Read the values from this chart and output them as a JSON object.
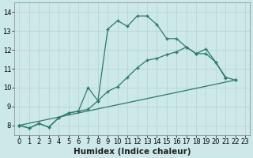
{
  "xlabel": "Humidex (Indice chaleur)",
  "background_color": "#cce8e8",
  "line_color": "#2a7a6a",
  "grid_color": "#b8d4d4",
  "xlim": [
    -0.5,
    23.5
  ],
  "ylim": [
    7.5,
    14.5
  ],
  "xticks": [
    0,
    1,
    2,
    3,
    4,
    5,
    6,
    7,
    8,
    9,
    10,
    11,
    12,
    13,
    14,
    15,
    16,
    17,
    18,
    19,
    20,
    21,
    22,
    23
  ],
  "yticks": [
    8,
    9,
    10,
    11,
    12,
    13,
    14
  ],
  "series1_x": [
    0,
    1,
    2,
    3,
    4,
    5,
    6,
    7,
    8,
    9,
    10,
    11,
    12,
    13,
    14,
    15,
    16,
    17,
    18,
    19,
    20,
    21
  ],
  "series1_y": [
    8.0,
    7.85,
    8.1,
    7.9,
    8.4,
    8.65,
    8.75,
    10.0,
    9.3,
    13.1,
    13.55,
    13.25,
    13.8,
    13.8,
    13.35,
    12.6,
    12.6,
    12.15,
    11.8,
    12.05,
    11.35,
    10.5
  ],
  "series2_x": [
    0,
    1,
    2,
    3,
    4,
    5,
    6,
    7,
    8,
    9,
    10,
    11,
    12,
    13,
    14,
    15,
    16,
    17,
    18,
    19,
    20,
    21,
    22
  ],
  "series2_y": [
    8.0,
    7.85,
    8.1,
    7.9,
    8.4,
    8.65,
    8.75,
    8.85,
    9.3,
    9.8,
    10.05,
    10.55,
    11.05,
    11.45,
    11.55,
    11.75,
    11.9,
    12.15,
    11.8,
    11.8,
    11.35,
    10.55,
    10.4
  ],
  "series3_x": [
    0,
    22
  ],
  "series3_y": [
    8.0,
    10.4
  ],
  "tick_fontsize": 6,
  "label_fontsize": 7.5
}
